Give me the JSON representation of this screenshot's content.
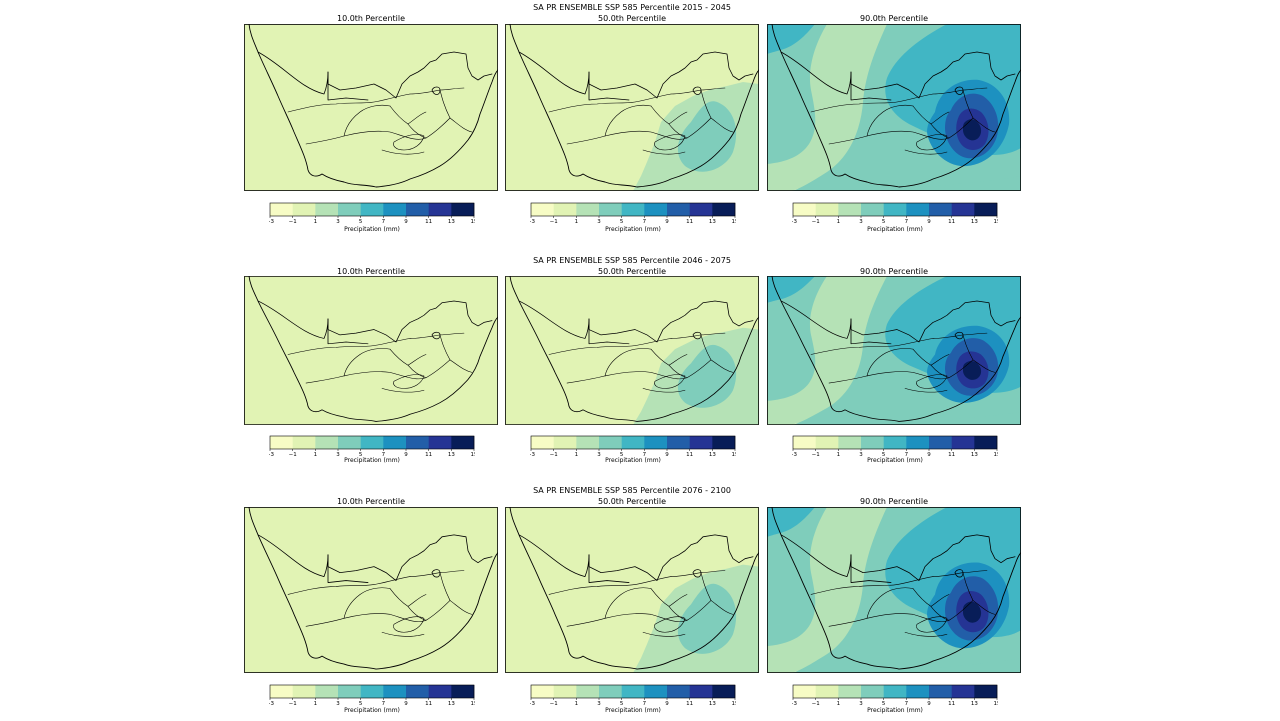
{
  "figure": {
    "colorbar": {
      "levels": [
        -3,
        -1,
        1,
        3,
        5,
        7,
        9,
        11,
        13,
        15
      ],
      "tick_labels": [
        "−3",
        "−1",
        "1",
        "3",
        "5",
        "7",
        "9",
        "11",
        "13",
        "15"
      ],
      "label": "Precipitation (mm)",
      "colors": [
        "#f7fcc5",
        "#e1f3b4",
        "#b5e2b6",
        "#7fcdbb",
        "#41b6c4",
        "#1d91c0",
        "#225ea8",
        "#253494",
        "#081d58"
      ]
    },
    "border_color": "#000000",
    "rows": [
      {
        "title": "SA PR ENSEMBLE SSP 585 Percentile 2015 - 2045",
        "panels": [
          {
            "title": "10.0th Percentile",
            "background_level": 1
          },
          {
            "title": "50.0th Percentile",
            "background_level": 1
          },
          {
            "title": "90.0th Percentile",
            "background_level": 3
          }
        ]
      },
      {
        "title": "SA PR ENSEMBLE SSP 585 Percentile 2046 - 2075",
        "panels": [
          {
            "title": "10.0th Percentile",
            "background_level": 1
          },
          {
            "title": "50.0th Percentile",
            "background_level": 1
          },
          {
            "title": "90.0th Percentile",
            "background_level": 3
          }
        ]
      },
      {
        "title": "SA PR ENSEMBLE SSP 585 Percentile 2076 - 2100",
        "panels": [
          {
            "title": "10.0th Percentile",
            "background_level": 1
          },
          {
            "title": "50.0th Percentile",
            "background_level": 1
          },
          {
            "title": "90.0th Percentile",
            "background_level": 3
          }
        ]
      }
    ]
  }
}
